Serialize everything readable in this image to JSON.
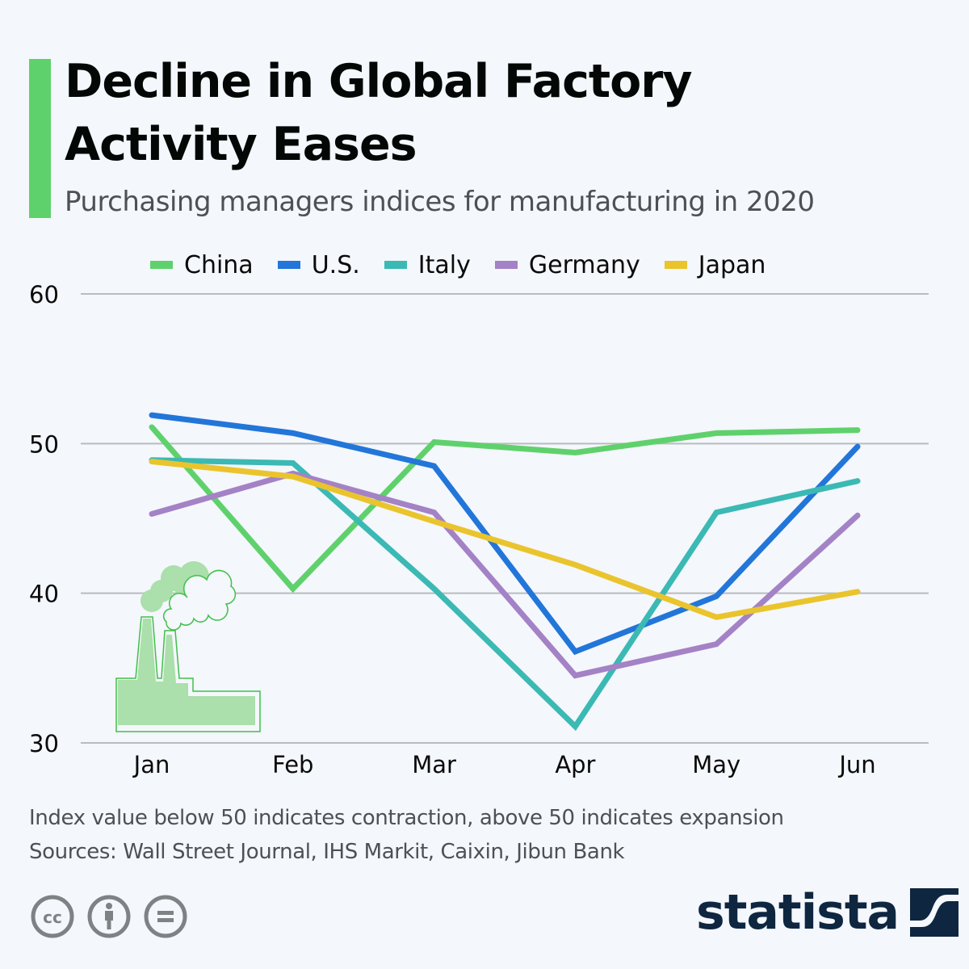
{
  "header": {
    "title_line1": "Decline in Global Factory",
    "title_line2": "Activity Eases",
    "subtitle": "Purchasing managers indices for manufacturing in 2020",
    "accent_color": "#5fd16c"
  },
  "footer": {
    "note": "Index value below 50 indicates contraction, above 50 indicates expansion",
    "sources": "Sources: Wall Street Journal, IHS Markit, Caixin, Jibun Bank",
    "license_icons": [
      "creative-commons-icon",
      "attribution-icon",
      "no-derivatives-icon"
    ],
    "brand": "statista",
    "brand_color": "#0f2640"
  },
  "illustration": "factory-icon",
  "chart_data": {
    "type": "line",
    "title": "Decline in Global Factory Activity Eases",
    "subtitle": "Purchasing managers indices for manufacturing in 2020",
    "xlabel": "",
    "ylabel": "",
    "categories": [
      "Jan",
      "Feb",
      "Mar",
      "Apr",
      "May",
      "Jun"
    ],
    "ylim": [
      30,
      60
    ],
    "yticks": [
      30,
      40,
      50,
      60
    ],
    "grid": true,
    "legend_position": "top",
    "series": [
      {
        "name": "China",
        "color": "#5fd16c",
        "values": [
          51.1,
          40.3,
          50.1,
          49.4,
          50.7,
          50.9
        ]
      },
      {
        "name": "U.S.",
        "color": "#2276d9",
        "values": [
          51.9,
          50.7,
          48.5,
          36.1,
          39.8,
          49.8
        ]
      },
      {
        "name": "Italy",
        "color": "#3bb9b4",
        "values": [
          48.9,
          48.7,
          40.3,
          31.1,
          45.4,
          47.5
        ]
      },
      {
        "name": "Germany",
        "color": "#a482c6",
        "values": [
          45.3,
          48.0,
          45.4,
          34.5,
          36.6,
          45.2
        ]
      },
      {
        "name": "Japan",
        "color": "#eac42d",
        "values": [
          48.8,
          47.8,
          44.8,
          41.9,
          38.4,
          40.1
        ]
      }
    ]
  }
}
